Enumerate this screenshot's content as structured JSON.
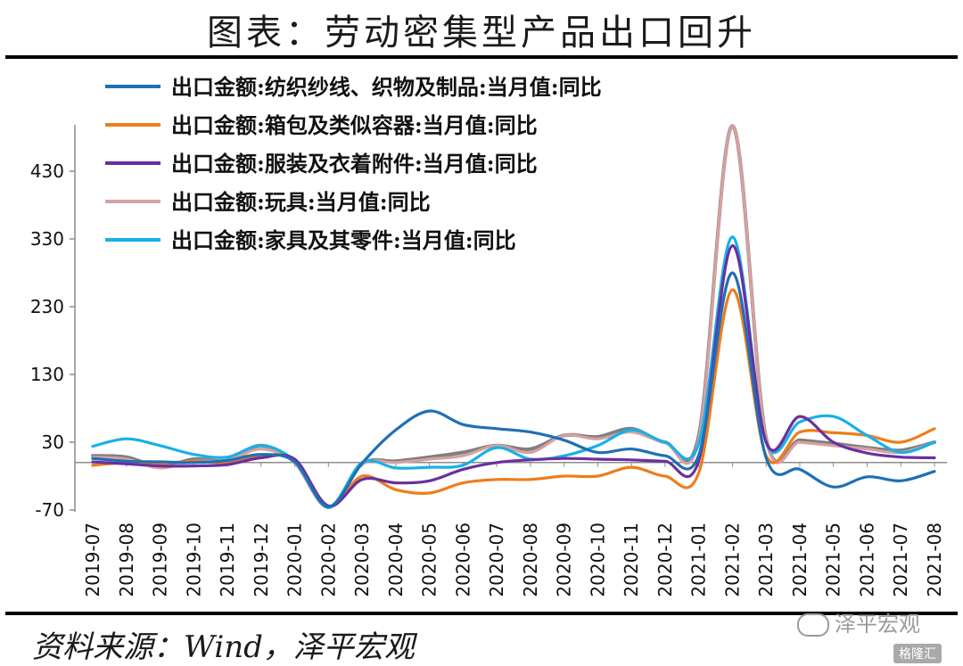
{
  "header": {
    "title": "图表：劳动密集型产品出口回升"
  },
  "footer": {
    "source": "资料来源：Wind，泽平宏观",
    "watermark": "泽平宏观",
    "badge": "格隆汇"
  },
  "chart_data": {
    "type": "line",
    "title": "图表：劳动密集型产品出口回升",
    "xlabel": "",
    "ylabel": "",
    "x": [
      "2019-07",
      "2019-08",
      "2019-09",
      "2019-10",
      "2019-11",
      "2019-12",
      "2020-01",
      "2020-02",
      "2020-03",
      "2020-04",
      "2020-05",
      "2020-06",
      "2020-07",
      "2020-08",
      "2020-09",
      "2020-10",
      "2020-11",
      "2020-12",
      "2021-01",
      "2021-02",
      "2021-03",
      "2021-04",
      "2021-05",
      "2021-06",
      "2021-07",
      "2021-08"
    ],
    "ylim": [
      -70,
      500
    ],
    "yticks": [
      -70,
      30,
      130,
      230,
      330,
      430
    ],
    "grid": false,
    "legend_position": "top-left",
    "series": [
      {
        "name": "出口金额:纺织纱线、织物及制品:当月值:同比",
        "color": "#1f6fb5",
        "values": [
          6,
          2,
          1,
          0,
          3,
          12,
          1,
          -65,
          -1,
          48,
          76,
          56,
          50,
          45,
          33,
          15,
          20,
          10,
          11,
          280,
          7,
          -10,
          -36,
          -21,
          -27,
          -13
        ]
      },
      {
        "name": "出口金额:箱包及类似容器:当月值:同比",
        "color": "#ee7d1b",
        "values": [
          -4,
          0,
          -1,
          2,
          0,
          10,
          4,
          -64,
          -20,
          -40,
          -45,
          -30,
          -25,
          -25,
          -20,
          -20,
          -7,
          -20,
          -15,
          255,
          10,
          45,
          44,
          40,
          30,
          50
        ]
      },
      {
        "name": "出口金额:服装及衣着附件:当月值:同比",
        "color": "#6a2fa0",
        "values": [
          1,
          -2,
          -5,
          -5,
          -3,
          7,
          5,
          -64,
          -25,
          -30,
          -27,
          -10,
          0,
          4,
          6,
          5,
          4,
          2,
          3,
          320,
          30,
          68,
          30,
          14,
          8,
          7
        ]
      },
      {
        "name": "出口金额:玩具:当月值:同比",
        "color": "#d8a0a0",
        "values": [
          8,
          5,
          -8,
          2,
          3,
          20,
          0,
          -66,
          -2,
          0,
          5,
          10,
          25,
          15,
          40,
          35,
          45,
          30,
          35,
          497,
          35,
          30,
          25,
          20,
          15,
          30
        ]
      },
      {
        "name": "出口金额:家具及其零件:当月值:同比",
        "color": "#19b0e8",
        "values": [
          24,
          35,
          25,
          12,
          8,
          25,
          2,
          -66,
          0,
          -8,
          -7,
          -4,
          22,
          5,
          10,
          25,
          48,
          30,
          28,
          333,
          30,
          60,
          68,
          40,
          15,
          30
        ]
      },
      {
        "name": "",
        "color": "#7f7f7f",
        "values": [
          10,
          8,
          -6,
          5,
          3,
          25,
          0,
          -66,
          -2,
          2,
          8,
          15,
          25,
          20,
          40,
          38,
          50,
          30,
          40,
          497,
          36,
          33,
          28,
          22,
          18,
          30
        ]
      }
    ]
  }
}
